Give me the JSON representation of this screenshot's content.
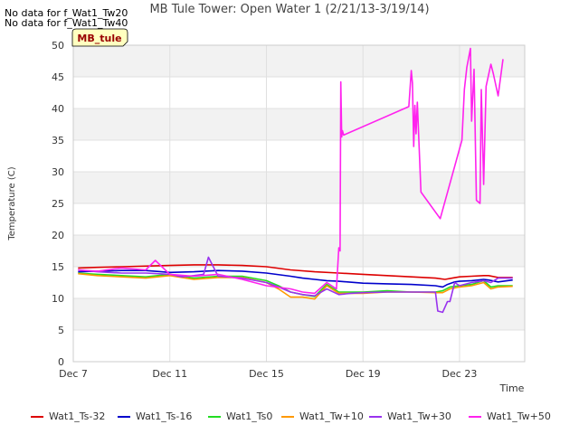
{
  "notes": [
    "No data for f_Wat1_Tw20",
    "No data for f_Wat1_Tw40"
  ],
  "site_badge": "MB_tule",
  "chart_data": {
    "type": "line",
    "title": "MB Tule Tower: Open Water 1 (2/21/13-3/19/14)",
    "xlabel": "Time",
    "ylabel": "Temperature (C)",
    "xlim": [
      7,
      25.7
    ],
    "ylim": [
      0,
      50
    ],
    "yticks": [
      0,
      5,
      10,
      15,
      20,
      25,
      30,
      35,
      40,
      45,
      50
    ],
    "xticks": [
      {
        "v": 7,
        "label": "Dec 7"
      },
      {
        "v": 11,
        "label": "Dec 11"
      },
      {
        "v": 15,
        "label": "Dec 15"
      },
      {
        "v": 19,
        "label": "Dec 19"
      },
      {
        "v": 23,
        "label": "Dec 23"
      }
    ],
    "series": [
      {
        "name": "Wat1_Ts-32",
        "color": "#dd0000",
        "x": [
          7.2,
          8,
          9,
          10,
          11,
          12,
          13,
          14,
          15,
          16,
          17,
          18,
          19,
          20,
          21,
          22,
          22.4,
          22.7,
          23,
          23.5,
          24,
          24.2,
          24.6,
          25.2
        ],
        "y": [
          14.8,
          14.9,
          15.0,
          15.1,
          15.2,
          15.3,
          15.3,
          15.2,
          15.0,
          14.5,
          14.2,
          14.0,
          13.8,
          13.6,
          13.4,
          13.2,
          13.0,
          13.2,
          13.4,
          13.5,
          13.6,
          13.6,
          13.3,
          13.3
        ]
      },
      {
        "name": "Wat1_Ts-16",
        "color": "#0000cc",
        "x": [
          7.2,
          8,
          9,
          10,
          11,
          12,
          13,
          14,
          15,
          16,
          16.5,
          17,
          17.5,
          18,
          19,
          20,
          21,
          22,
          22.3,
          22.5,
          22.8,
          23,
          23.5,
          24,
          24.2,
          24.6,
          25.2
        ],
        "y": [
          14.2,
          14.3,
          14.4,
          14.4,
          14.1,
          14.2,
          14.4,
          14.3,
          14.0,
          13.5,
          13.2,
          13.0,
          12.8,
          12.7,
          12.4,
          12.3,
          12.2,
          12.0,
          11.8,
          12.2,
          12.6,
          12.7,
          12.8,
          13.0,
          12.9,
          12.6,
          12.9
        ]
      },
      {
        "name": "Wat1_Ts0",
        "color": "#22dd22",
        "x": [
          7.2,
          8,
          9,
          10,
          11,
          12,
          13,
          14,
          15,
          15.5,
          16,
          16.5,
          17,
          17.5,
          18,
          18.5,
          19,
          20,
          21,
          22,
          22.3,
          22.6,
          23,
          23.5,
          24,
          24.3,
          24.6,
          25.2
        ],
        "y": [
          14.0,
          13.8,
          13.6,
          13.4,
          13.8,
          13.2,
          13.5,
          13.5,
          12.8,
          12.0,
          11.0,
          10.6,
          10.3,
          12.2,
          11.0,
          11.0,
          11.0,
          11.2,
          11.0,
          11.0,
          11.2,
          11.8,
          12.0,
          12.2,
          12.8,
          11.8,
          12.0,
          12.0
        ]
      },
      {
        "name": "Wat1_Tw+10",
        "color": "#ff9900",
        "x": [
          7.2,
          8,
          9,
          10,
          11,
          12,
          13,
          14,
          15,
          15.5,
          16,
          16.5,
          17,
          17.5,
          18,
          18.5,
          19,
          20,
          21,
          22,
          22.3,
          22.6,
          23,
          23.5,
          24,
          24.3,
          24.6,
          25.2
        ],
        "y": [
          13.9,
          13.6,
          13.4,
          13.2,
          13.6,
          13.0,
          13.3,
          13.3,
          12.5,
          11.5,
          10.2,
          10.2,
          9.9,
          12.0,
          10.8,
          10.8,
          10.8,
          11.0,
          11.0,
          10.9,
          10.9,
          11.5,
          11.8,
          12.0,
          12.5,
          11.5,
          11.8,
          11.9
        ]
      },
      {
        "name": "Wat1_Tw+30",
        "color": "#9933ee",
        "x": [
          7.2,
          8,
          9,
          10,
          11,
          11.5,
          12,
          12.4,
          12.6,
          13,
          14,
          15,
          15.5,
          16,
          16.5,
          17,
          17.5,
          18,
          18.5,
          19,
          20,
          21,
          22,
          22.1,
          22.3,
          22.5,
          22.6,
          22.8,
          23,
          23.5,
          24,
          24.3,
          24.6,
          25.2
        ],
        "y": [
          14.5,
          14.2,
          14.0,
          14.0,
          13.8,
          13.4,
          13.6,
          13.8,
          16.5,
          13.5,
          13.2,
          12.5,
          11.8,
          11.0,
          10.6,
          10.4,
          11.5,
          10.6,
          10.8,
          10.9,
          11.0,
          11.0,
          11.0,
          8.0,
          7.8,
          9.5,
          9.5,
          12.5,
          12.0,
          12.5,
          12.8,
          12.5,
          13.2,
          13.2
        ]
      },
      {
        "name": "Wat1_Tw+50",
        "color": "#ff22ee",
        "x": [
          7.2,
          8,
          9,
          10,
          10.4,
          11,
          12,
          13,
          14,
          14.5,
          15,
          16,
          16.5,
          17,
          17.5,
          17.9,
          18,
          18.05,
          18.08,
          18.12,
          18.15,
          18.2,
          20.9,
          21.0,
          21.05,
          21.1,
          21.15,
          21.2,
          21.25,
          21.4,
          22.2,
          23.1,
          23.2,
          23.3,
          23.45,
          23.5,
          23.6,
          23.7,
          23.85,
          23.9,
          24.0,
          24.1,
          24.3,
          24.4,
          24.6,
          24.8
        ],
        "y": [
          14.5,
          14.3,
          14.8,
          14.5,
          16.0,
          13.8,
          13.5,
          13.8,
          13.0,
          12.5,
          12.0,
          11.5,
          11.0,
          10.8,
          12.5,
          11.5,
          18.0,
          17.5,
          44.2,
          35.5,
          36.5,
          35.8,
          40.3,
          46.0,
          44.0,
          34.0,
          40.5,
          36.0,
          41.0,
          26.8,
          22.6,
          35.0,
          43.0,
          46.5,
          49.5,
          38.0,
          46.2,
          25.5,
          25.0,
          43.0,
          28.0,
          43.5,
          47.0,
          45.5,
          42.0,
          47.8
        ]
      }
    ]
  }
}
